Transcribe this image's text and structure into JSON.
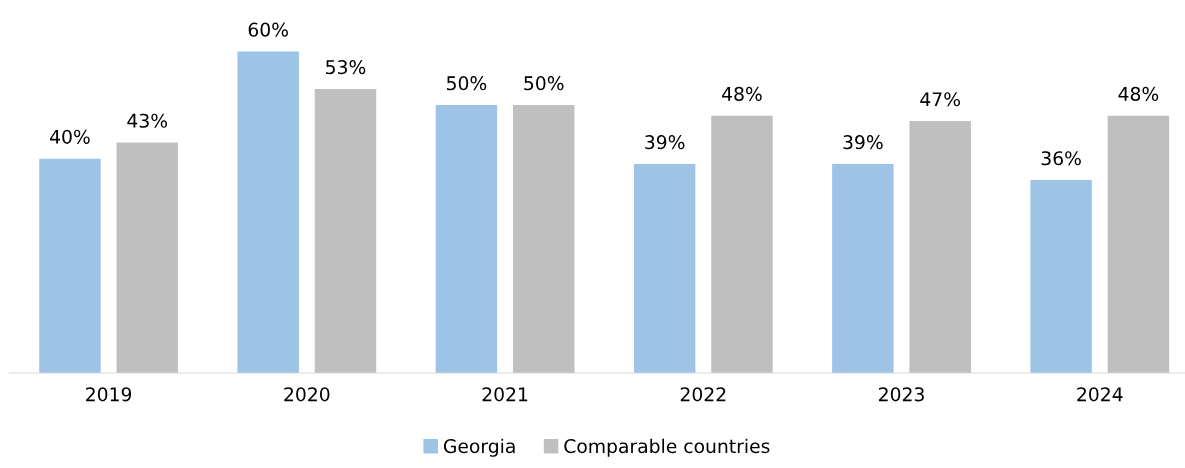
{
  "chart_data": {
    "type": "bar",
    "categories": [
      "2019",
      "2020",
      "2021",
      "2022",
      "2023",
      "2024"
    ],
    "series": [
      {
        "name": "Georgia",
        "color": "#9dc3e6",
        "values": [
          40,
          60,
          50,
          39,
          39,
          36
        ],
        "value_labels": [
          "40%",
          "60%",
          "50%",
          "39%",
          "39%",
          "36%"
        ]
      },
      {
        "name": "Comparable countries",
        "color": "#bfbfbf",
        "values": [
          43,
          53,
          50,
          48,
          47,
          48
        ],
        "value_labels": [
          "43%",
          "53%",
          "50%",
          "48%",
          "47%",
          "48%"
        ]
      }
    ],
    "tick_labels": "x",
    "grid": false,
    "legend": "bottom"
  }
}
